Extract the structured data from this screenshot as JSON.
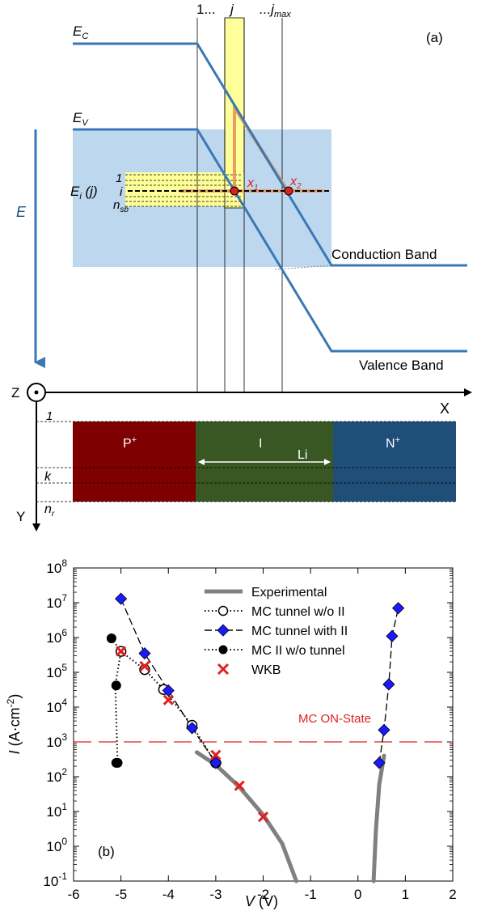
{
  "panel_a": {
    "label": "(a)",
    "ec": "E",
    "ec_sub": "C",
    "ev": "E",
    "ev_sub": "V",
    "e_axis": "E",
    "ei": "E",
    "ei_sub": "i",
    "ei_rest": " (j)",
    "col_1": "1...",
    "col_j": "j",
    "col_jmax_prefix": "...j",
    "col_jmax_sub": "max",
    "sb_one": "1",
    "sb_i": "i",
    "sb_n": "n",
    "sb_n_sub": "sb",
    "x1": "x",
    "x1_sub": "1",
    "x2": "x",
    "x2_sub": "2",
    "conduction_band": "Conduction Band",
    "valence_band": "Valence Band",
    "axis_z": "Z",
    "axis_x": "X",
    "axis_y": "Y",
    "row_1": "1",
    "row_k": "k",
    "row_n": "n",
    "row_n_sub": "r",
    "region_p": "P",
    "region_p_sup": "+",
    "region_i": "I",
    "region_n": "N",
    "region_n_sup": "+",
    "li": "Li",
    "colors": {
      "band_line": "#3a78b5",
      "p_region": "#7f0000",
      "i_region": "#385723",
      "n_region": "#1f4e79",
      "blue_fill": "#bdd7ee",
      "yellow": "#ffff99",
      "orange": "#e8935a",
      "red_dot": "#e02020"
    }
  },
  "chart_data": {
    "type": "scatter",
    "title": "",
    "panel_label": "(b)",
    "xlabel": "V",
    "xlabel_unit": " (V)",
    "ylabel": "I",
    "ylabel_unit_prefix": " (A·cm",
    "ylabel_unit_sup": "-2",
    "ylabel_unit_suffix": ")",
    "xlim": [
      -6,
      2
    ],
    "ylim_log10": [
      -1,
      8
    ],
    "yscale": "log",
    "x_ticks": [
      "-6",
      "-5",
      "-4",
      "-3",
      "-2",
      "-1",
      "0",
      "1",
      "2"
    ],
    "y_ticks": [
      {
        "base": "10",
        "exp": "8"
      },
      {
        "base": "10",
        "exp": "7"
      },
      {
        "base": "10",
        "exp": "6"
      },
      {
        "base": "10",
        "exp": "5"
      },
      {
        "base": "10",
        "exp": "4"
      },
      {
        "base": "10",
        "exp": "3"
      },
      {
        "base": "10",
        "exp": "2"
      },
      {
        "base": "10",
        "exp": "1"
      },
      {
        "base": "10",
        "exp": "0"
      },
      {
        "base": "10",
        "exp": "-1"
      }
    ],
    "annotation": "MC ON-State",
    "on_state_level": 1000,
    "legend_position": "top-right",
    "series": [
      {
        "name": "Experimental",
        "color": "#808080",
        "segments": [
          [
            [
              -3.4,
              500
            ],
            [
              -3.0,
              220
            ],
            [
              -2.5,
              50
            ],
            [
              -2.0,
              8
            ],
            [
              -1.6,
              1.2
            ],
            [
              -1.3,
              0.1
            ]
          ],
          [
            [
              0.33,
              0.1
            ],
            [
              0.38,
              3
            ],
            [
              0.45,
              60
            ],
            [
              0.55,
              400
            ]
          ]
        ]
      },
      {
        "name": "MC tunnel w/o II",
        "color": "#000000",
        "x": [
          -5.0,
          -4.5,
          -4.1,
          -3.5,
          -3.0
        ],
        "y": [
          400000,
          120000,
          32000,
          3000,
          250
        ]
      },
      {
        "name": "MC tunnel with II",
        "color": "#1a1aff",
        "segments": [
          [
            [
              -5.0,
              13000000
            ],
            [
              -4.5,
              350000
            ],
            [
              -4.0,
              30000
            ],
            [
              -3.5,
              2500
            ],
            [
              -3.0,
              250
            ]
          ],
          [
            [
              0.45,
              250
            ],
            [
              0.55,
              2200
            ],
            [
              0.65,
              45000
            ],
            [
              0.72,
              1100000
            ],
            [
              0.85,
              7000000
            ]
          ]
        ]
      },
      {
        "name": "MC II w/o tunnel",
        "color": "#000000",
        "x": [
          -5.1,
          -5.2,
          -5.1,
          -5.07
        ],
        "y": [
          250,
          950000,
          42000,
          250
        ],
        "dotted_path": [
          [
            -5.2,
            950000
          ],
          [
            -5.0,
            400000
          ],
          [
            -5.12,
            42000
          ],
          [
            -5.07,
            250
          ]
        ]
      },
      {
        "name": "WKB",
        "color": "#e02020",
        "x": [
          -5.0,
          -4.5,
          -4.0,
          -3.0,
          -2.5,
          -2.0
        ],
        "y": [
          400000,
          150000,
          16000,
          420,
          55,
          7
        ]
      }
    ]
  }
}
